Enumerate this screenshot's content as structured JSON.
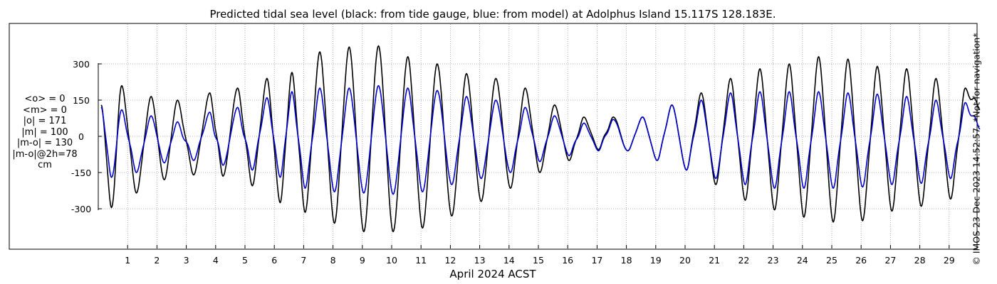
{
  "chart_data": {
    "type": "line",
    "title": "Predicted tidal sea level (black: from tide gauge, blue: from model) at Adolphus Island 15.117S 128.183E.",
    "xlabel": "April 2024 ACST",
    "ylabel": "",
    "units": "cm",
    "x_ticks": [
      "1",
      "2",
      "3",
      "4",
      "5",
      "6",
      "7",
      "8",
      "9",
      "10",
      "11",
      "12",
      "13",
      "14",
      "15",
      "16",
      "17",
      "18",
      "19",
      "20",
      "21",
      "22",
      "23",
      "24",
      "25",
      "26",
      "27",
      "28",
      "29"
    ],
    "y_ticks": [
      -300,
      -150,
      0,
      150,
      300
    ],
    "y_tick_labels": [
      "-300",
      "-150",
      "0",
      "150",
      "300"
    ],
    "xlim": [
      0,
      30.1
    ],
    "ylim": [
      -460,
      460
    ],
    "grid": "dotted",
    "series": [
      {
        "name": "black: from tide gauge",
        "color": "#000000",
        "x": [
          0.1,
          0.45,
          0.8,
          1.3,
          1.8,
          2.25,
          2.7,
          3.25,
          3.8,
          4.25,
          4.75,
          5.25,
          5.75,
          6.2,
          6.6,
          7.05,
          7.55,
          8.05,
          8.55,
          9.05,
          9.55,
          10.05,
          10.55,
          11.05,
          11.55,
          12.05,
          12.55,
          13.05,
          13.55,
          14.05,
          14.55,
          15.05,
          15.55,
          16.05,
          16.55,
          17.05,
          17.55,
          18.05,
          18.55,
          19.05,
          19.55,
          20.05,
          20.55,
          21.05,
          21.55,
          22.05,
          22.55,
          23.05,
          23.55,
          24.05,
          24.55,
          25.05,
          25.55,
          26.05,
          26.55,
          27.05,
          27.55,
          28.05,
          28.55,
          29.05,
          29.55,
          30.05
        ],
        "y": [
          130,
          -295,
          210,
          -235,
          165,
          -180,
          150,
          -160,
          180,
          -165,
          200,
          -205,
          240,
          -275,
          265,
          -315,
          350,
          -360,
          370,
          -395,
          375,
          -395,
          330,
          -380,
          300,
          -330,
          260,
          -270,
          240,
          -215,
          200,
          -150,
          130,
          -100,
          80,
          -55,
          80,
          -60,
          80,
          -100,
          130,
          -140,
          180,
          -200,
          240,
          -265,
          280,
          -305,
          300,
          -335,
          330,
          -355,
          320,
          -350,
          290,
          -310,
          280,
          -290,
          240,
          -260,
          200,
          110
        ],
        "mid": [
          -20,
          0,
          -30,
          20,
          -10,
          15,
          -30,
          20,
          -40,
          10,
          -40,
          30,
          -30,
          30,
          -40,
          40,
          -30,
          30,
          -20,
          20,
          -20,
          20,
          -30,
          20,
          -10,
          30,
          -20,
          20,
          -10,
          30,
          -20,
          20,
          -10,
          20,
          -10,
          20,
          0,
          10,
          -10,
          20,
          -10,
          30,
          -20,
          30,
          -30,
          40,
          -30,
          40,
          -40,
          40,
          -30,
          40,
          -30,
          40,
          -30,
          40,
          -30,
          40,
          -30,
          40,
          -30,
          0
        ]
      },
      {
        "name": "blue: from model",
        "color": "#0000cc",
        "x": [
          0.1,
          0.45,
          0.8,
          1.3,
          1.8,
          2.25,
          2.7,
          3.25,
          3.8,
          4.25,
          4.75,
          5.25,
          5.75,
          6.2,
          6.6,
          7.05,
          7.55,
          8.05,
          8.55,
          9.05,
          9.55,
          10.05,
          10.55,
          11.05,
          11.55,
          12.05,
          12.55,
          13.05,
          13.55,
          14.05,
          14.55,
          15.05,
          15.55,
          16.05,
          16.55,
          17.05,
          17.55,
          18.05,
          18.55,
          19.05,
          19.55,
          20.05,
          20.55,
          21.05,
          21.55,
          22.05,
          22.55,
          23.05,
          23.55,
          24.05,
          24.55,
          25.05,
          25.55,
          26.05,
          26.55,
          27.05,
          27.55,
          28.05,
          28.55,
          29.05,
          29.55,
          30.05
        ],
        "y": [
          120,
          -170,
          110,
          -150,
          85,
          -110,
          60,
          -100,
          100,
          -120,
          120,
          -140,
          160,
          -170,
          185,
          -215,
          200,
          -230,
          200,
          -235,
          210,
          -240,
          200,
          -230,
          190,
          -200,
          165,
          -175,
          150,
          -150,
          120,
          -105,
          85,
          -80,
          55,
          -60,
          70,
          -60,
          80,
          -100,
          130,
          -140,
          150,
          -175,
          180,
          -200,
          185,
          -215,
          185,
          -215,
          185,
          -215,
          180,
          -210,
          175,
          -200,
          165,
          -195,
          150,
          -175,
          140,
          30
        ],
        "mid": [
          -20,
          0,
          -30,
          20,
          -10,
          15,
          -30,
          20,
          -40,
          10,
          -40,
          30,
          -30,
          30,
          -40,
          40,
          -30,
          30,
          -20,
          20,
          -20,
          20,
          -30,
          20,
          -10,
          30,
          -20,
          20,
          -10,
          30,
          -20,
          20,
          -10,
          20,
          -10,
          20,
          0,
          10,
          -10,
          20,
          -10,
          30,
          -20,
          30,
          -30,
          40,
          -30,
          40,
          -40,
          40,
          -30,
          40,
          -30,
          40,
          -30,
          40,
          -30,
          40,
          -30,
          40,
          -30,
          0
        ]
      }
    ],
    "stats_lines": [
      "<o> = 0",
      "<m> = 0",
      "|o| = 171",
      "|m| = 100",
      "|m-o| = 130",
      "|m-o|@2h=78",
      "cm"
    ]
  },
  "credit": "© IMOS 23-Dec-2023 14:52:57. *Not for navigation*"
}
